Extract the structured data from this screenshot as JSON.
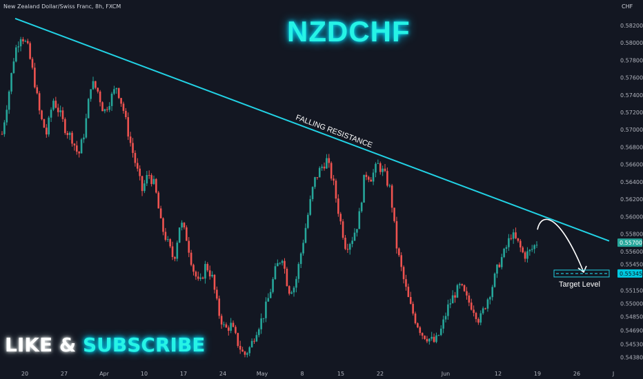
{
  "header": {
    "symbol_line": "New Zealand Dollar/Swiss Franc, 8h, FXCM",
    "currency": "CHF"
  },
  "title": "NZDCHF",
  "promo": {
    "part1": "LIKE & ",
    "part2": "SUBSCRIBE"
  },
  "colors": {
    "background": "#131722",
    "bull": "#26a69a",
    "bear": "#ef5350",
    "trendline": "#22d3e6",
    "title": "#26f3e6"
  },
  "chart_data": {
    "type": "candlestick",
    "title": "NZDCHF",
    "subtitle": "New Zealand Dollar/Swiss Franc, 8h, FXCM",
    "ylabel": "CHF",
    "ylim": [
      0.5425,
      0.5835
    ],
    "y_ticks": [
      "0.58200",
      "0.58000",
      "0.57800",
      "0.57600",
      "0.57400",
      "0.57200",
      "0.57000",
      "0.56800",
      "0.56600",
      "0.56400",
      "0.56200",
      "0.56000",
      "0.55800",
      "0.55600",
      "0.55450",
      "0.55150",
      "0.55000",
      "0.54850",
      "0.54690",
      "0.54530",
      "0.54380"
    ],
    "x_ticks": [
      "20",
      "27",
      "Apr",
      "10",
      "17",
      "24",
      "May",
      "8",
      "15",
      "22",
      "Jun",
      "12",
      "19",
      "26",
      "J"
    ],
    "price_path": [
      0.5695,
      0.574,
      0.579,
      0.581,
      0.5795,
      0.576,
      0.5715,
      0.5695,
      0.5735,
      0.572,
      0.57,
      0.569,
      0.567,
      0.57,
      0.5755,
      0.5745,
      0.572,
      0.5735,
      0.575,
      0.5725,
      0.569,
      0.566,
      0.563,
      0.565,
      0.5635,
      0.559,
      0.557,
      0.555,
      0.5595,
      0.5575,
      0.554,
      0.552,
      0.5545,
      0.553,
      0.549,
      0.547,
      0.5475,
      0.5455,
      0.544,
      0.545,
      0.547,
      0.5485,
      0.551,
      0.554,
      0.5555,
      0.5515,
      0.552,
      0.556,
      0.56,
      0.564,
      0.5655,
      0.5665,
      0.564,
      0.56,
      0.5565,
      0.5575,
      0.5595,
      0.565,
      0.5645,
      0.566,
      0.565,
      0.563,
      0.5565,
      0.553,
      0.55,
      0.548,
      0.5465,
      0.546,
      0.5455,
      0.547,
      0.5495,
      0.551,
      0.552,
      0.5505,
      0.5495,
      0.548,
      0.55,
      0.552,
      0.5545,
      0.556,
      0.558,
      0.557,
      0.5555,
      0.556,
      0.557
    ],
    "current_price": "0.55700",
    "target_price": "0.55345",
    "trendline": {
      "label": "FALLING RESISTANCE",
      "from": [
        "Mar 17",
        0.5828
      ],
      "to": [
        "Jun 28",
        0.5572
      ]
    },
    "target_label": "Target Level",
    "forecast_arrow": {
      "from": 0.5585,
      "peak": 0.559,
      "to": 0.5534
    }
  }
}
